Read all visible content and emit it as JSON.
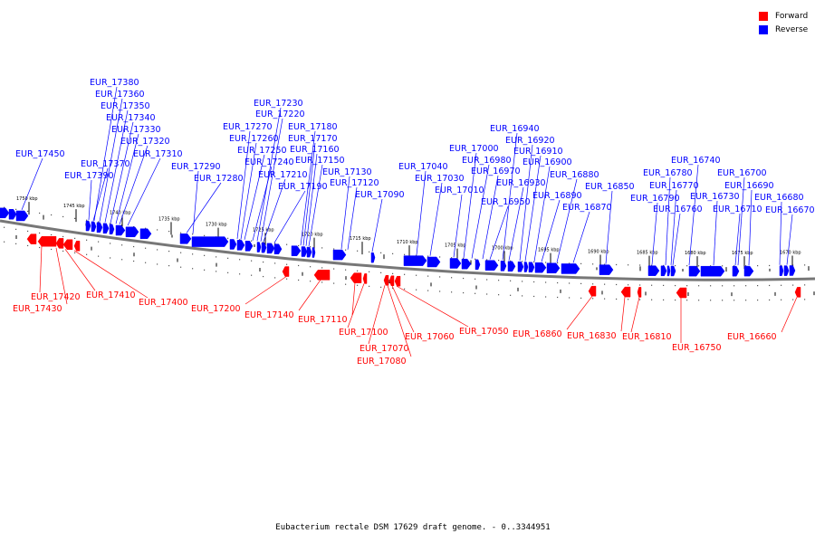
{
  "legend": {
    "forward_label": "Forward",
    "reverse_label": "Reverse",
    "forward_color": "#ff0000",
    "reverse_color": "#0000ff"
  },
  "caption": "Eubacterium rectale DSM 17629 draft genome. - 0..3344951",
  "scale_ticks": [
    "1750 kbp",
    "1745 kbp",
    "1740 kbp",
    "1735 kbp",
    "1730 kbp",
    "1725 kbp",
    "1720 kbp",
    "1715 kbp",
    "1710 kbp",
    "1705 kbp",
    "1700 kbp",
    "1695 kbp",
    "1690 kbp",
    "1685 kbp",
    "1680 kbp",
    "1675 kbp",
    "1670 kbp"
  ],
  "reverse_genes": [
    "EUR_17450",
    "EUR_17390",
    "EUR_17380",
    "EUR_17370",
    "EUR_17360",
    "EUR_17350",
    "EUR_17340",
    "EUR_17330",
    "EUR_17320",
    "EUR_17310",
    "EUR_17290",
    "EUR_17280",
    "EUR_17270",
    "EUR_17260",
    "EUR_17250",
    "EUR_17240",
    "EUR_17230",
    "EUR_17220",
    "EUR_17210",
    "EUR_17190",
    "EUR_17180",
    "EUR_17170",
    "EUR_17160",
    "EUR_17150",
    "EUR_17130",
    "EUR_17120",
    "EUR_17090",
    "EUR_17040",
    "EUR_17030",
    "EUR_17010",
    "EUR_17000",
    "EUR_16980",
    "EUR_16970",
    "EUR_16950",
    "EUR_16940",
    "EUR_16930",
    "EUR_16920",
    "EUR_16910",
    "EUR_16900",
    "EUR_16890",
    "EUR_16880",
    "EUR_16870",
    "EUR_16850",
    "EUR_16790",
    "EUR_16780",
    "EUR_16770",
    "EUR_16760",
    "EUR_16740",
    "EUR_16730",
    "EUR_16710",
    "EUR_16700",
    "EUR_16690",
    "EUR_16680",
    "EUR_16670"
  ],
  "forward_genes": [
    "EUR_17420",
    "EUR_17430",
    "EUR_17410",
    "EUR_17400",
    "EUR_17200",
    "EUR_17140",
    "EUR_17110",
    "EUR_17100",
    "EUR_17070",
    "EUR_17080",
    "EUR_17060",
    "EUR_17050",
    "EUR_16860",
    "EUR_16830",
    "EUR_16810",
    "EUR_16750",
    "EUR_16660"
  ]
}
